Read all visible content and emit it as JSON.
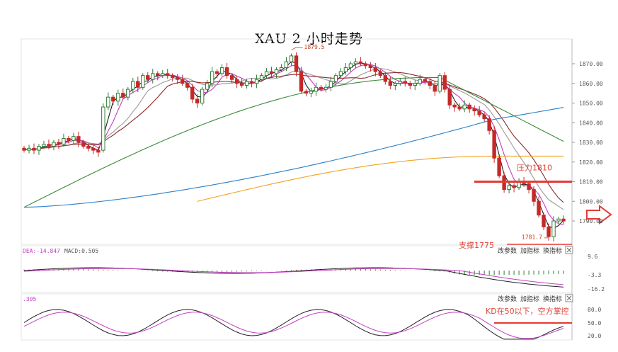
{
  "title": "XAU 2 小时走势",
  "colors": {
    "up": "#2e7d32",
    "down": "#c62828",
    "ma_black": "#222222",
    "ma_magenta": "#c23fc2",
    "ma_gray": "#999999",
    "ma_darkred": "#8b2a2a",
    "ma_green": "#3a8a3a",
    "ma_blue": "#2a7fc9",
    "ma_orange": "#f2a21e",
    "annotation_red": "#e53935"
  },
  "annotations": {
    "resistance": "压力1810",
    "support": "支撑1775",
    "kd_note": "KD在50以下，空方掌控",
    "high_marker": "1879.5",
    "low_marker": "1781.7"
  },
  "macd_header": {
    "dea": "DEA:-14.847",
    "macd": "MACD:0.505"
  },
  "kd_header": ".305",
  "panel_buttons": {
    "macd": [
      "改参数",
      "加指标",
      "换指标"
    ],
    "kd": [
      "改参数",
      "加指标",
      "换指标"
    ]
  },
  "chart_data": [
    {
      "type": "line",
      "panel": "price",
      "candles": [
        [
          1827,
          1826
        ],
        [
          1826,
          1827
        ],
        [
          1827,
          1826
        ],
        [
          1826,
          1828
        ],
        [
          1828,
          1829
        ],
        [
          1829,
          1828
        ],
        [
          1828,
          1830
        ],
        [
          1830,
          1829
        ],
        [
          1829,
          1832
        ],
        [
          1832,
          1831
        ],
        [
          1831,
          1833
        ],
        [
          1833,
          1830
        ],
        [
          1830,
          1828
        ],
        [
          1828,
          1827
        ],
        [
          1827,
          1826
        ],
        [
          1826,
          1825
        ],
        [
          1826,
          1848
        ],
        [
          1848,
          1853
        ],
        [
          1853,
          1851
        ],
        [
          1851,
          1855
        ],
        [
          1855,
          1853
        ],
        [
          1853,
          1857
        ],
        [
          1857,
          1861
        ],
        [
          1861,
          1858
        ],
        [
          1858,
          1864
        ],
        [
          1864,
          1862
        ],
        [
          1862,
          1865
        ],
        [
          1865,
          1864
        ],
        [
          1864,
          1865
        ],
        [
          1865,
          1864
        ],
        [
          1864,
          1863
        ],
        [
          1863,
          1862
        ],
        [
          1862,
          1860
        ],
        [
          1860,
          1858
        ],
        [
          1858,
          1852
        ],
        [
          1852,
          1850
        ],
        [
          1850,
          1857
        ],
        [
          1857,
          1860
        ],
        [
          1860,
          1866
        ],
        [
          1866,
          1865
        ],
        [
          1865,
          1868
        ],
        [
          1868,
          1864
        ],
        [
          1864,
          1862
        ],
        [
          1862,
          1860
        ],
        [
          1860,
          1859
        ],
        [
          1859,
          1861
        ],
        [
          1861,
          1860
        ],
        [
          1860,
          1862
        ],
        [
          1862,
          1864
        ],
        [
          1864,
          1866
        ],
        [
          1866,
          1865
        ],
        [
          1865,
          1867
        ],
        [
          1867,
          1868
        ],
        [
          1868,
          1871
        ],
        [
          1871,
          1874
        ],
        [
          1874,
          1866
        ],
        [
          1866,
          1856
        ],
        [
          1856,
          1855
        ],
        [
          1855,
          1856
        ],
        [
          1856,
          1858
        ],
        [
          1858,
          1857
        ],
        [
          1857,
          1858
        ],
        [
          1858,
          1861
        ],
        [
          1861,
          1864
        ],
        [
          1864,
          1866
        ],
        [
          1866,
          1868
        ],
        [
          1868,
          1870
        ],
        [
          1870,
          1871
        ],
        [
          1871,
          1870
        ],
        [
          1870,
          1869
        ],
        [
          1869,
          1868
        ],
        [
          1868,
          1866
        ],
        [
          1866,
          1864
        ],
        [
          1864,
          1861
        ],
        [
          1861,
          1859
        ],
        [
          1859,
          1860
        ],
        [
          1860,
          1861
        ],
        [
          1861,
          1860
        ],
        [
          1860,
          1859
        ],
        [
          1859,
          1860
        ],
        [
          1860,
          1862
        ],
        [
          1862,
          1861
        ],
        [
          1861,
          1859
        ],
        [
          1859,
          1856
        ],
        [
          1856,
          1864
        ],
        [
          1864,
          1857
        ],
        [
          1857,
          1849
        ],
        [
          1849,
          1848
        ],
        [
          1848,
          1847
        ],
        [
          1847,
          1849
        ],
        [
          1849,
          1847
        ],
        [
          1847,
          1846
        ],
        [
          1846,
          1844
        ],
        [
          1844,
          1842
        ],
        [
          1842,
          1836
        ],
        [
          1836,
          1822
        ],
        [
          1822,
          1813
        ],
        [
          1813,
          1806
        ],
        [
          1806,
          1808
        ],
        [
          1808,
          1807
        ],
        [
          1807,
          1810
        ],
        [
          1810,
          1809
        ],
        [
          1809,
          1806
        ],
        [
          1806,
          1800
        ],
        [
          1800,
          1793
        ],
        [
          1793,
          1787
        ],
        [
          1787,
          1782
        ],
        [
          1782,
          1790
        ],
        [
          1790,
          1791
        ],
        [
          1791,
          1790
        ]
      ],
      "ylim": [
        1782,
        1878
      ],
      "y_ticks": [
        1870.0,
        1860.0,
        1850.0,
        1840.0,
        1830.0,
        1820.0,
        1810.0,
        1800.0,
        1790.0
      ],
      "resistance_level": 1810,
      "support_level": 1775
    },
    {
      "type": "bar",
      "panel": "macd",
      "y_ticks": [
        9.6,
        -3.3,
        -16.2
      ]
    },
    {
      "type": "line",
      "panel": "kd",
      "y_ticks": [
        80.0,
        50.0,
        20.0
      ]
    }
  ]
}
